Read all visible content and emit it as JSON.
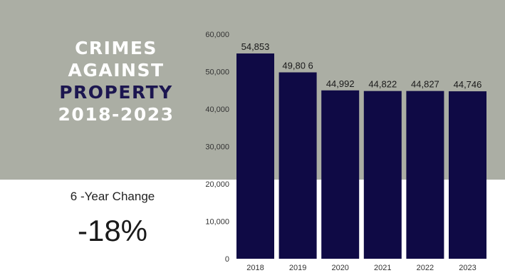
{
  "colors": {
    "band": "#abaea4",
    "bar": "#0f0a45",
    "title_white": "#ffffff",
    "title_navy": "#1c1650"
  },
  "chart_data": {
    "type": "bar",
    "title": "CRIMES AGAINST PROPERTY 2018-2023",
    "categories": [
      "2018",
      "2019",
      "2020",
      "2021",
      "2022",
      "2023"
    ],
    "values": [
      54853,
      49806,
      44992,
      44822,
      44827,
      44746
    ],
    "data_labels": [
      "54,853",
      "49,80 6",
      "44,992",
      "44,822",
      "44,827",
      "44,746"
    ],
    "ylim": [
      0,
      60000
    ],
    "yticks": [
      0,
      10000,
      20000,
      30000,
      40000,
      50000,
      60000
    ],
    "ytick_labels": [
      "0",
      "10,000",
      "20,000",
      "30,000",
      "40,000",
      "50,000",
      "60,000"
    ],
    "grid": false,
    "xlabel": "",
    "ylabel": ""
  },
  "title_lines": [
    "CRIMES",
    "AGAINST",
    "PROPERTY",
    "2018-2023"
  ],
  "summary": {
    "label": "6 -Year Change",
    "value": "-18%"
  }
}
